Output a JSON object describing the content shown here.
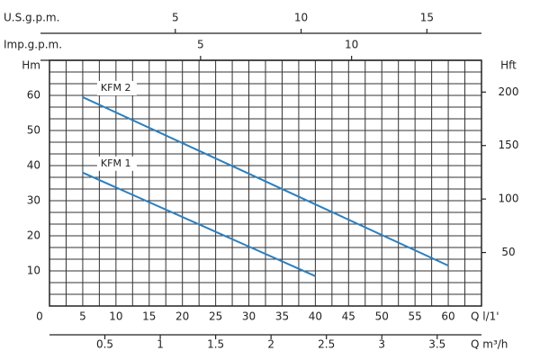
{
  "chart_data": {
    "type": "line",
    "x_label": "Q l/1'",
    "y_label": "Hm",
    "y2_label": "Hft",
    "xlim": [
      0,
      65
    ],
    "xticks": [
      0,
      5,
      10,
      15,
      20,
      25,
      30,
      35,
      40,
      45,
      50,
      55,
      60
    ],
    "ylim": [
      0,
      70
    ],
    "yticks": [
      10,
      20,
      30,
      40,
      50,
      60
    ],
    "y2lim": [
      0,
      229.7
    ],
    "y2ticks": [
      50,
      100,
      150,
      200
    ],
    "grid": true,
    "xgrid_step": 2.5,
    "ygrid_step": 3.3333,
    "extra_x_axes": [
      {
        "label": "U.S.g.p.m.",
        "position": "top",
        "lim": [
          0,
          17.17
        ],
        "ticks": [
          5,
          10,
          15
        ]
      },
      {
        "label": "Imp.g.p.m.",
        "position": "top",
        "lim": [
          0,
          14.3
        ],
        "ticks": [
          5,
          10
        ]
      },
      {
        "label": "Q m³/h",
        "position": "bottom",
        "lim": [
          0,
          3.9
        ],
        "ticks": [
          0.5,
          1,
          1.5,
          2,
          2.5,
          3,
          3.5
        ]
      }
    ],
    "x": [
      5,
      60
    ],
    "series": [
      {
        "name": "KFM 2",
        "color": "#2b7fc0",
        "values": [
          59.5,
          11.5
        ]
      },
      {
        "name": "KFM 1",
        "color": "#2b7fc0",
        "values": [
          38,
          null
        ],
        "x": [
          5,
          40
        ],
        "end_values": [
          38,
          8.5
        ]
      }
    ]
  }
}
